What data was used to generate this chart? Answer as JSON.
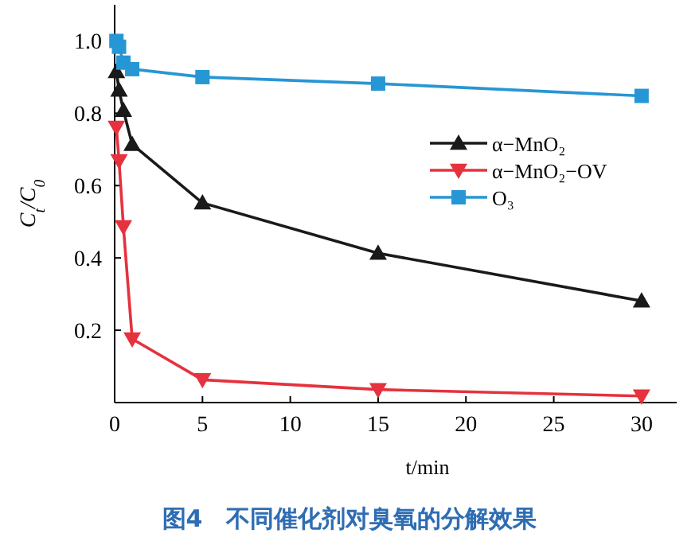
{
  "chart_data": {
    "type": "line",
    "title": "图4　不同催化剂对臭氧的分解效果",
    "xlabel": "t/min",
    "ylabel": "C$_{t}$/C$_{0}$",
    "x": [
      0.1,
      0.25,
      0.5,
      1,
      5,
      15,
      30
    ],
    "xlim": [
      0,
      32
    ],
    "xticks": [
      0,
      5,
      10,
      15,
      20,
      25,
      30
    ],
    "ylim": [
      0,
      1.1
    ],
    "yticks": [
      0.2,
      0.4,
      0.6,
      0.8,
      {
        "value": 1,
        "label": "1.0"
      }
    ],
    "legend": "right",
    "grid": false,
    "line_style": "solid",
    "series": [
      {
        "name": "α−MnO₂",
        "color": "#1a1a1a",
        "marker": "triangle",
        "values": [
          0.915,
          0.864,
          0.808,
          0.714,
          0.552,
          0.413,
          0.281
        ]
      },
      {
        "name": "α−MnO₂−OV",
        "color": "#e5323e",
        "marker": "triangle-down",
        "values": [
          0.761,
          0.669,
          0.486,
          0.176,
          0.063,
          0.036,
          0.018
        ]
      },
      {
        "name": "O₃",
        "color": "#2796d4",
        "marker": "square",
        "values": [
          1.0,
          0.984,
          0.94,
          0.922,
          0.9,
          0.882,
          0.848
        ]
      }
    ]
  }
}
